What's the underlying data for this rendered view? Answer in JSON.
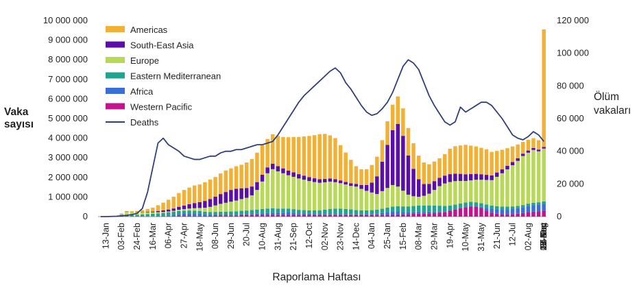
{
  "chart_data": {
    "type": "bar",
    "stacked": true,
    "xlabel": "Raporlama Haftası",
    "ylabel": "Vaka sayısı",
    "ylabel_lines": [
      "Vaka",
      "sayısı"
    ],
    "y2label": "Ölüm vakaları",
    "y2label_lines": [
      "Ölüm",
      "vakaları"
    ],
    "ylim": [
      0,
      10000000
    ],
    "y2lim": [
      0,
      120000
    ],
    "yticks": [
      "0",
      "1 000 000",
      "2 000 000",
      "3 000 000",
      "4 000 000",
      "5 000 000",
      "6 000 000",
      "7 000 000",
      "8 000 000",
      "9 000 000",
      "10 000 000"
    ],
    "y2ticks": [
      "0",
      "20 000",
      "40 000",
      "60 000",
      "80 000",
      "100 000",
      "120 000"
    ],
    "x_tick_labels": [
      "13-Jan",
      "03-Feb",
      "24-Feb",
      "16-Mar",
      "06-Apr",
      "27-Apr",
      "18-May",
      "08-Jun",
      "29-Jun",
      "20-Jul",
      "10-Aug",
      "31-Aug",
      "21-Sep",
      "12-Oct",
      "02-Nov",
      "23-Nov",
      "14-Dec",
      "04-Jan",
      "25-Jan",
      "15-Feb",
      "08-Mar",
      "29-Mar",
      "19-Apr",
      "10-May",
      "31-May",
      "21-Jun",
      "12-Jul",
      "02-Aug",
      "23-Aug",
      "13-Sep",
      "04-Oct",
      "25-Oct",
      "15-Nov",
      "06-Dec",
      "27-Dec"
    ],
    "legend_position": "top-left",
    "colors": {
      "Americas": "#F2B134",
      "South-East Asia": "#5B0FA8",
      "Europe": "#B7D957",
      "Eastern Mediterranean": "#1FA58F",
      "Africa": "#3A6FD8",
      "Western Pacific": "#C2148F",
      "Deaths": "#2D3E7A"
    },
    "legend": [
      "Americas",
      "South-East Asia",
      "Europe",
      "Eastern Mediterranean",
      "Africa",
      "Western Pacific",
      "Deaths"
    ],
    "stack_order": [
      "Western Pacific",
      "Africa",
      "Eastern Mediterranean",
      "Europe",
      "South-East Asia",
      "Americas"
    ],
    "series": [
      {
        "name": "Western Pacific",
        "values": [
          0,
          5000,
          15000,
          20000,
          20000,
          15000,
          10000,
          8000,
          5000,
          5000,
          8000,
          8000,
          15000,
          20000,
          30000,
          50000,
          50000,
          50000,
          40000,
          40000,
          40000,
          45000,
          50000,
          60000,
          60000,
          60000,
          60000,
          70000,
          70000,
          80000,
          90000,
          100000,
          100000,
          100000,
          80000,
          70000,
          70000,
          70000,
          75000,
          90000,
          90000,
          90000,
          85000,
          80000,
          80000,
          75000,
          80000,
          80000,
          75000,
          70000,
          70000,
          75000,
          75000,
          75000,
          80000,
          90000,
          100000,
          110000,
          110000,
          120000,
          140000,
          150000,
          150000,
          170000,
          180000,
          200000,
          220000,
          280000,
          350000,
          420000,
          480000,
          520000,
          500000,
          420000,
          300000,
          200000,
          150000,
          120000,
          120000,
          130000,
          150000,
          180000,
          230000,
          250000,
          260000,
          280000
        ]
      },
      {
        "name": "Africa",
        "values": [
          0,
          0,
          0,
          0,
          1000,
          2000,
          5000,
          8000,
          10000,
          15000,
          20000,
          25000,
          30000,
          40000,
          55000,
          70000,
          90000,
          110000,
          120000,
          110000,
          90000,
          70000,
          60000,
          50000,
          45000,
          40000,
          40000,
          45000,
          50000,
          55000,
          60000,
          70000,
          80000,
          90000,
          110000,
          130000,
          140000,
          120000,
          90000,
          70000,
          55000,
          45000,
          40000,
          40000,
          45000,
          50000,
          45000,
          40000,
          40000,
          40000,
          45000,
          50000,
          55000,
          70000,
          100000,
          140000,
          160000,
          150000,
          130000,
          110000,
          100000,
          100000,
          90000,
          80000,
          70000,
          55000,
          40000,
          35000,
          30000,
          30000,
          30000,
          30000,
          40000,
          80000,
          150000,
          200000,
          230000,
          250000,
          260000,
          270000,
          280000,
          300000,
          320000,
          340000,
          360000,
          380000
        ]
      },
      {
        "name": "Eastern Mediterranean",
        "values": [
          0,
          0,
          0,
          5000,
          20000,
          40000,
          60000,
          80000,
          100000,
          110000,
          120000,
          130000,
          140000,
          150000,
          160000,
          170000,
          160000,
          150000,
          140000,
          130000,
          120000,
          120000,
          130000,
          140000,
          150000,
          160000,
          170000,
          180000,
          190000,
          200000,
          210000,
          220000,
          230000,
          230000,
          220000,
          210000,
          200000,
          190000,
          180000,
          170000,
          170000,
          180000,
          200000,
          230000,
          260000,
          280000,
          280000,
          270000,
          250000,
          220000,
          200000,
          190000,
          200000,
          210000,
          220000,
          230000,
          250000,
          270000,
          280000,
          290000,
          300000,
          310000,
          320000,
          320000,
          310000,
          300000,
          280000,
          250000,
          230000,
          220000,
          210000,
          200000,
          190000,
          180000,
          170000,
          160000,
          150000,
          140000,
          130000,
          120000,
          110000,
          110000,
          110000,
          110000,
          110000,
          110000
        ]
      },
      {
        "name": "Europe",
        "values": [
          0,
          0,
          0,
          0,
          100000,
          200000,
          150000,
          120000,
          100000,
          80000,
          70000,
          60000,
          50000,
          50000,
          50000,
          60000,
          80000,
          100000,
          130000,
          160000,
          200000,
          260000,
          330000,
          400000,
          450000,
          500000,
          550000,
          600000,
          650000,
          750000,
          1000000,
          1400000,
          1800000,
          2000000,
          1900000,
          1800000,
          1700000,
          1650000,
          1600000,
          1550000,
          1500000,
          1450000,
          1400000,
          1400000,
          1400000,
          1350000,
          1300000,
          1250000,
          1200000,
          1200000,
          1100000,
          1000000,
          900000,
          800000,
          900000,
          1000000,
          1100000,
          1000000,
          800000,
          600000,
          500000,
          450000,
          500000,
          600000,
          800000,
          1000000,
          1150000,
          1200000,
          1200000,
          1150000,
          1100000,
          1100000,
          1150000,
          1200000,
          1250000,
          1300000,
          1500000,
          1700000,
          1900000,
          2100000,
          2300000,
          2500000,
          2600000,
          2700000,
          2600000,
          2700000
        ]
      },
      {
        "name": "South-East Asia",
        "values": [
          0,
          0,
          0,
          0,
          3000,
          6000,
          10000,
          15000,
          20000,
          30000,
          40000,
          60000,
          80000,
          100000,
          120000,
          150000,
          180000,
          220000,
          260000,
          300000,
          350000,
          400000,
          450000,
          500000,
          550000,
          600000,
          600000,
          550000,
          500000,
          450000,
          400000,
          350000,
          300000,
          280000,
          260000,
          250000,
          240000,
          230000,
          220000,
          210000,
          200000,
          190000,
          180000,
          170000,
          160000,
          150000,
          140000,
          130000,
          130000,
          140000,
          200000,
          300000,
          500000,
          900000,
          1500000,
          2200000,
          2800000,
          3200000,
          2800000,
          2000000,
          1400000,
          900000,
          600000,
          500000,
          450000,
          420000,
          400000,
          400000,
          380000,
          360000,
          340000,
          320000,
          300000,
          280000,
          260000,
          240000,
          220000,
          200000,
          180000,
          160000,
          140000,
          120000,
          110000,
          100000,
          90000,
          80000
        ]
      },
      {
        "name": "Americas",
        "values": [
          0,
          0,
          0,
          0,
          10000,
          20000,
          40000,
          60000,
          100000,
          150000,
          200000,
          300000,
          400000,
          500000,
          600000,
          700000,
          800000,
          850000,
          900000,
          900000,
          950000,
          1000000,
          1000000,
          1050000,
          1100000,
          1100000,
          1150000,
          1200000,
          1300000,
          1400000,
          1500000,
          1500000,
          1450000,
          1500000,
          1550000,
          1600000,
          1700000,
          1800000,
          1900000,
          2000000,
          2100000,
          2200000,
          2300000,
          2300000,
          2200000,
          2100000,
          1800000,
          1500000,
          1200000,
          900000,
          800000,
          800000,
          900000,
          1000000,
          1100000,
          1200000,
          1300000,
          1400000,
          1400000,
          1400000,
          1300000,
          1200000,
          1100000,
          1000000,
          1000000,
          1000000,
          1100000,
          1300000,
          1400000,
          1450000,
          1500000,
          1450000,
          1400000,
          1350000,
          1300000,
          1200000,
          1100000,
          1000000,
          900000,
          800000,
          700000,
          600000,
          550000,
          500000,
          480000,
          6000000
        ]
      }
    ],
    "deaths": [
      0,
      0,
      100,
      200,
      500,
      800,
      1200,
      2000,
      5000,
      15000,
      30000,
      45000,
      48000,
      44000,
      42000,
      40000,
      37000,
      36000,
      35000,
      35000,
      36000,
      37000,
      37000,
      39000,
      40000,
      40000,
      41000,
      41000,
      42000,
      43000,
      44000,
      44000,
      45000,
      46000,
      50000,
      55000,
      60000,
      65000,
      70000,
      74000,
      77000,
      80000,
      83000,
      86000,
      89000,
      91000,
      88000,
      82000,
      78000,
      73000,
      68000,
      64000,
      62000,
      63000,
      66000,
      70000,
      76000,
      84000,
      92000,
      96000,
      94000,
      90000,
      82000,
      74000,
      68000,
      63000,
      58000,
      56000,
      58000,
      67000,
      64000,
      66000,
      68000,
      70000,
      70000,
      68000,
      64000,
      60000,
      55000,
      50000,
      48000,
      47000,
      49000,
      52000,
      50000,
      46000
    ],
    "annotations": []
  }
}
